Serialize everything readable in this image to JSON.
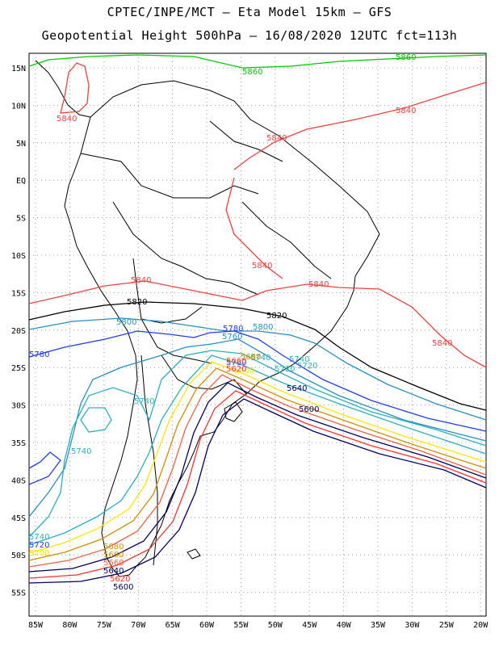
{
  "header": {
    "line1": "CPTEC/INPE/MCT –  Eta Model 15km – GFS",
    "line2": "Geopotential Height 500hPa – 16/08/2020 12UTC fct=113h"
  },
  "map": {
    "lon_labels": [
      "85W",
      "80W",
      "75W",
      "70W",
      "65W",
      "60W",
      "55W",
      "50W",
      "45W",
      "40W",
      "35W",
      "30W",
      "25W",
      "20W"
    ],
    "lat_labels": [
      "15N",
      "10N",
      "5N",
      "EQ",
      "5S",
      "10S",
      "15S",
      "20S",
      "25S",
      "30S",
      "35S",
      "40S",
      "45S",
      "50S",
      "55S"
    ],
    "contour_labels": [
      {
        "text": "5860",
        "color": "#00c800"
      },
      {
        "text": "5860",
        "color": "#00c800"
      },
      {
        "text": "5840",
        "color": "#f04040"
      },
      {
        "text": "5840",
        "color": "#f04040"
      },
      {
        "text": "5840",
        "color": "#f04040"
      },
      {
        "text": "5840",
        "color": "#f04040"
      },
      {
        "text": "5840",
        "color": "#f04040"
      },
      {
        "text": "5840",
        "color": "#f04040"
      },
      {
        "text": "5840",
        "color": "#f04040"
      },
      {
        "text": "5820",
        "color": "#000000"
      },
      {
        "text": "5820",
        "color": "#000000"
      },
      {
        "text": "5800",
        "color": "#2890c0"
      },
      {
        "text": "5800",
        "color": "#2890c0"
      },
      {
        "text": "5780",
        "color": "#1e3cff"
      },
      {
        "text": "5780",
        "color": "#1e3cff"
      },
      {
        "text": "5760",
        "color": "#2890c0"
      },
      {
        "text": "5740",
        "color": "#2ab0c0"
      },
      {
        "text": "5740",
        "color": "#2ab0c0"
      },
      {
        "text": "5740",
        "color": "#2ab0c0"
      },
      {
        "text": "5720",
        "color": "#1e3cff"
      },
      {
        "text": "5700",
        "color": "#ffe600"
      },
      {
        "text": "5680",
        "color": "#d09000"
      },
      {
        "text": "5680",
        "color": "#d09000"
      },
      {
        "text": "5660",
        "color": "#f06040"
      },
      {
        "text": "5640",
        "color": "#000060"
      },
      {
        "text": "5620",
        "color": "#ff3030"
      },
      {
        "text": "5600",
        "color": "#000060"
      },
      {
        "text": "5740",
        "color": "#2ab0c0"
      },
      {
        "text": "5720",
        "color": "#2ab0c0"
      },
      {
        "text": "5760",
        "color": "#1e3cff"
      },
      {
        "text": "5740",
        "color": "#2ab0c0"
      },
      {
        "text": "5720",
        "color": "#2ab0c0"
      },
      {
        "text": "5700",
        "color": "#ffe600"
      },
      {
        "text": "5680",
        "color": "#d09000"
      },
      {
        "text": "5660",
        "color": "#f06040"
      },
      {
        "text": "5640",
        "color": "#000060"
      },
      {
        "text": "5620",
        "color": "#ff3030"
      },
      {
        "text": "5600",
        "color": "#000060"
      }
    ]
  }
}
